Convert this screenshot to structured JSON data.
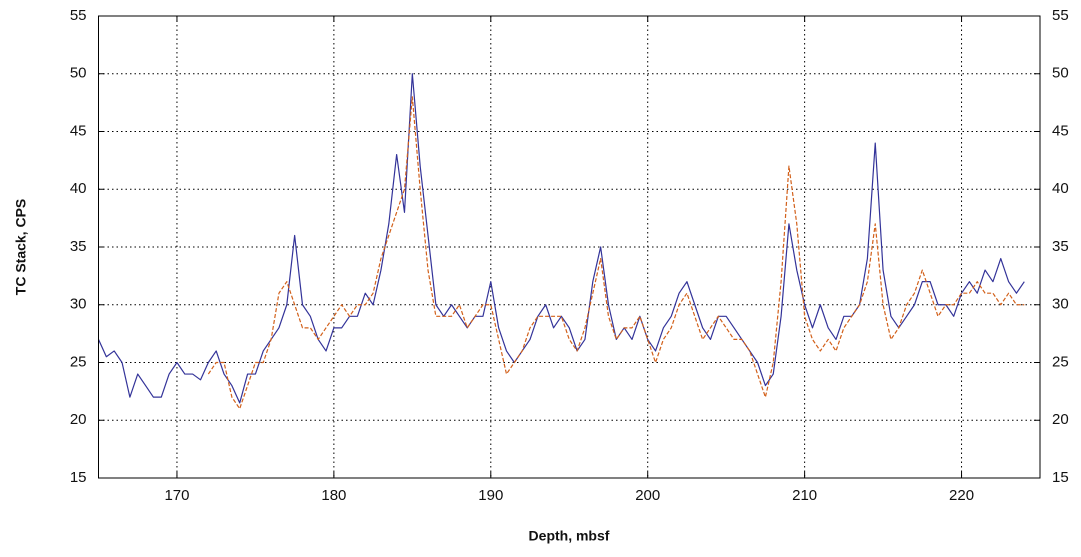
{
  "chart_data": {
    "type": "line",
    "xlabel": "Depth, mbsf",
    "ylabel": "TC Stack, CPS",
    "xlim": [
      165,
      225
    ],
    "xticks": [
      170,
      180,
      190,
      200,
      210,
      220
    ],
    "ylim": [
      15,
      55
    ],
    "yticks": [
      15,
      20,
      25,
      30,
      35,
      40,
      45,
      50,
      55
    ],
    "y2lim": [
      15,
      55
    ],
    "y2ticks": [
      15,
      20,
      25,
      30,
      35,
      40,
      45,
      50,
      55
    ],
    "grid": true,
    "x": [
      165,
      165.5,
      166,
      166.5,
      167,
      167.5,
      168,
      168.5,
      169,
      169.5,
      170,
      170.5,
      171,
      171.5,
      172,
      172.5,
      173,
      173.5,
      174,
      174.5,
      175,
      175.5,
      176,
      176.5,
      177,
      177.5,
      178,
      178.5,
      179,
      179.5,
      180,
      180.5,
      181,
      181.5,
      182,
      182.5,
      183,
      183.5,
      184,
      184.5,
      185,
      185.5,
      186,
      186.5,
      187,
      187.5,
      188,
      188.5,
      189,
      189.5,
      190,
      190.5,
      191,
      191.5,
      192,
      192.5,
      193,
      193.5,
      194,
      194.5,
      195,
      195.5,
      196,
      196.5,
      197,
      197.5,
      198,
      198.5,
      199,
      199.5,
      200,
      200.5,
      201,
      201.5,
      202,
      202.5,
      203,
      203.5,
      204,
      204.5,
      205,
      205.5,
      206,
      206.5,
      207,
      207.5,
      208,
      208.5,
      209,
      209.5,
      210,
      210.5,
      211,
      211.5,
      212,
      212.5,
      213,
      213.5,
      214,
      214.5,
      215,
      215.5,
      216,
      216.5,
      217,
      217.5,
      218,
      218.5,
      219,
      219.5,
      220,
      220.5,
      221,
      221.5,
      222,
      222.5,
      223,
      223.5,
      224
    ],
    "series": [
      {
        "color": "#333399",
        "dash": "solid",
        "values": [
          27,
          25.5,
          26,
          25,
          22,
          24,
          23,
          22,
          22,
          24,
          25,
          24,
          24,
          23.5,
          25,
          26,
          24,
          23,
          21.5,
          24,
          24,
          26,
          27,
          28,
          30,
          36,
          30,
          29,
          27,
          26,
          28,
          28,
          29,
          29,
          31,
          30,
          33,
          37,
          43,
          38,
          50,
          42,
          36,
          30,
          29,
          30,
          29,
          28,
          29,
          29,
          32,
          28,
          26,
          25,
          26,
          27,
          29,
          30,
          28,
          29,
          28,
          26,
          27,
          32,
          35,
          30,
          27,
          28,
          27,
          29,
          27,
          26,
          28,
          29,
          31,
          32,
          30,
          28,
          27,
          29,
          29,
          28,
          27,
          26,
          25,
          23,
          24,
          29,
          37,
          33,
          30,
          28,
          30,
          28,
          27,
          29,
          29,
          30,
          34,
          44,
          33,
          29,
          28,
          29,
          30,
          32,
          32,
          30,
          30,
          29,
          31,
          32,
          31,
          33,
          32,
          34,
          32,
          31,
          32
        ]
      },
      {
        "color": "#d2601a",
        "dash": "dashed",
        "values": [
          null,
          null,
          null,
          null,
          null,
          null,
          null,
          null,
          null,
          null,
          null,
          null,
          null,
          null,
          24,
          25,
          25,
          22,
          21,
          23,
          25,
          25,
          27,
          31,
          32,
          30,
          28,
          28,
          27,
          28,
          29,
          30,
          29,
          30,
          30,
          31,
          34,
          36,
          38,
          40,
          48,
          40,
          33,
          29,
          29,
          29,
          30,
          28,
          29,
          30,
          30,
          27,
          24,
          25,
          26,
          28,
          29,
          29,
          29,
          29,
          27,
          26,
          28,
          31,
          34,
          29,
          27,
          28,
          28,
          29,
          27,
          25,
          27,
          28,
          30,
          31,
          29,
          27,
          28,
          29,
          28,
          27,
          27,
          26,
          24,
          22,
          25,
          32,
          42,
          37,
          29,
          27,
          26,
          27,
          26,
          28,
          29,
          30,
          32,
          37,
          30,
          27,
          28,
          30,
          31,
          33,
          31,
          29,
          30,
          30,
          31,
          31,
          32,
          31,
          31,
          30,
          31,
          30,
          30
        ]
      }
    ]
  }
}
